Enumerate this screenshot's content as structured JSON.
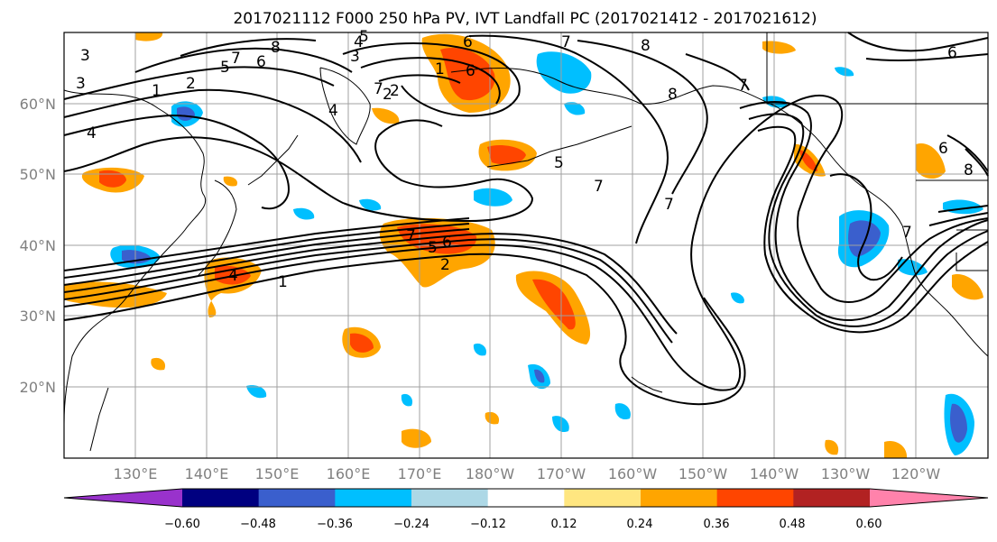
{
  "title": "2017021112 F000 250 hPa PV, IVT Landfall PC (2017021412 - 2017021612)",
  "map": {
    "lat_ticks": [
      "60°N",
      "50°N",
      "40°N",
      "30°N",
      "20°N"
    ],
    "lon_ticks": [
      "130°E",
      "140°E",
      "150°E",
      "160°E",
      "170°E",
      "180°W",
      "170°W",
      "160°W",
      "150°W",
      "140°W",
      "130°W",
      "120°W"
    ],
    "contour_labels": [
      "8",
      "7",
      "6",
      "5",
      "4",
      "3",
      "2",
      "1",
      "4",
      "7",
      "8",
      "6",
      "7",
      "6",
      "5",
      "2",
      "1",
      "7",
      "6",
      "5",
      "4",
      "3",
      "2",
      "1",
      "7",
      "8",
      "7",
      "6",
      "7",
      "8",
      "7",
      "6",
      "5",
      "4",
      "3",
      "2"
    ],
    "colors": {
      "pos_light": "#ffe680",
      "pos_mid": "#ffa500",
      "pos_strong": "#ff4500",
      "neg_light": "#add8e6",
      "neg_mid": "#00bfff",
      "neg_strong": "#3a5fcd",
      "grid": "#a0a0a0",
      "coast": "#000000"
    }
  },
  "colorbar": {
    "labels": [
      "−0.60",
      "−0.48",
      "−0.36",
      "−0.24",
      "−0.12",
      "0.12",
      "0.24",
      "0.36",
      "0.48",
      "0.60"
    ],
    "colors": [
      "#9932cc",
      "#000080",
      "#3a5fcd",
      "#00bfff",
      "#add8e6",
      "#ffffff",
      "#ffe680",
      "#ffa500",
      "#ff4500",
      "#b22222",
      "#ff82ab"
    ]
  }
}
